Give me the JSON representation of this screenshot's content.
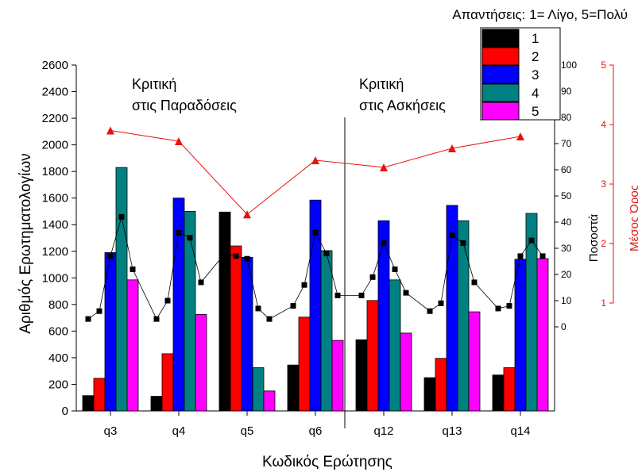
{
  "chart_data": {
    "type": "bar",
    "categories": [
      "q3",
      "q4",
      "q5",
      "q6",
      "q12",
      "q13",
      "q14"
    ],
    "xlabel": "Κωδικός Ερώτησης",
    "ylabel": "Αριθμός Ερωτηματολογίων",
    "ylabel_right": "Ποσοστά",
    "ylabel_right2": "Μέσος Όρος",
    "ylim": [
      0,
      2600
    ],
    "yticks": [
      0,
      200,
      400,
      600,
      800,
      1000,
      1200,
      1400,
      1600,
      1800,
      2000,
      2200,
      2400,
      2600
    ],
    "ylim_right": [
      0,
      100
    ],
    "yticks_right": [
      0,
      10,
      20,
      30,
      40,
      50,
      60,
      70,
      80,
      90,
      100
    ],
    "ylim_right2": [
      1,
      5
    ],
    "yticks_right2": [
      1,
      2,
      3,
      4,
      5
    ],
    "legend_title": "Απαντήσεις: 1= Λίγο, 5=Πολύ",
    "legend_position": "top-right",
    "series": [
      {
        "name": "1",
        "color": "#000000",
        "values": [
          115,
          110,
          1495,
          345,
          535,
          250,
          270
        ]
      },
      {
        "name": "2",
        "color": "#ff0000",
        "values": [
          245,
          430,
          1240,
          705,
          830,
          395,
          325
        ]
      },
      {
        "name": "3",
        "color": "#0000ff",
        "values": [
          1190,
          1600,
          1155,
          1585,
          1430,
          1545,
          1140
        ]
      },
      {
        "name": "4",
        "color": "#008080",
        "values": [
          1830,
          1500,
          325,
          1205,
          985,
          1430,
          1485
        ]
      },
      {
        "name": "5",
        "color": "#ff00ff",
        "values": [
          985,
          725,
          150,
          530,
          585,
          745,
          1145
        ]
      }
    ],
    "percent_line": {
      "axis": "right",
      "color": "#000000",
      "values": [
        [
          3,
          6,
          27,
          42,
          22
        ],
        [
          3,
          10,
          36,
          34,
          17
        ],
        [
          28,
          27,
          26,
          7,
          3
        ],
        [
          8,
          16,
          36,
          28,
          12
        ],
        [
          12,
          19,
          32,
          22,
          13
        ],
        [
          6,
          9,
          35,
          32,
          17
        ],
        [
          7,
          8,
          27,
          33,
          27
        ]
      ]
    },
    "mean_line": {
      "axis": "right2",
      "color": "#e8120c",
      "values": [
        3.9,
        3.72,
        2.49,
        3.4,
        3.28,
        3.6,
        3.8
      ]
    },
    "annotations": [
      {
        "lines": [
          "Κριτική",
          "στις Παραδόσεις"
        ]
      },
      {
        "lines": [
          "Κριτική",
          "στις Ασκήσεις"
        ]
      }
    ]
  }
}
